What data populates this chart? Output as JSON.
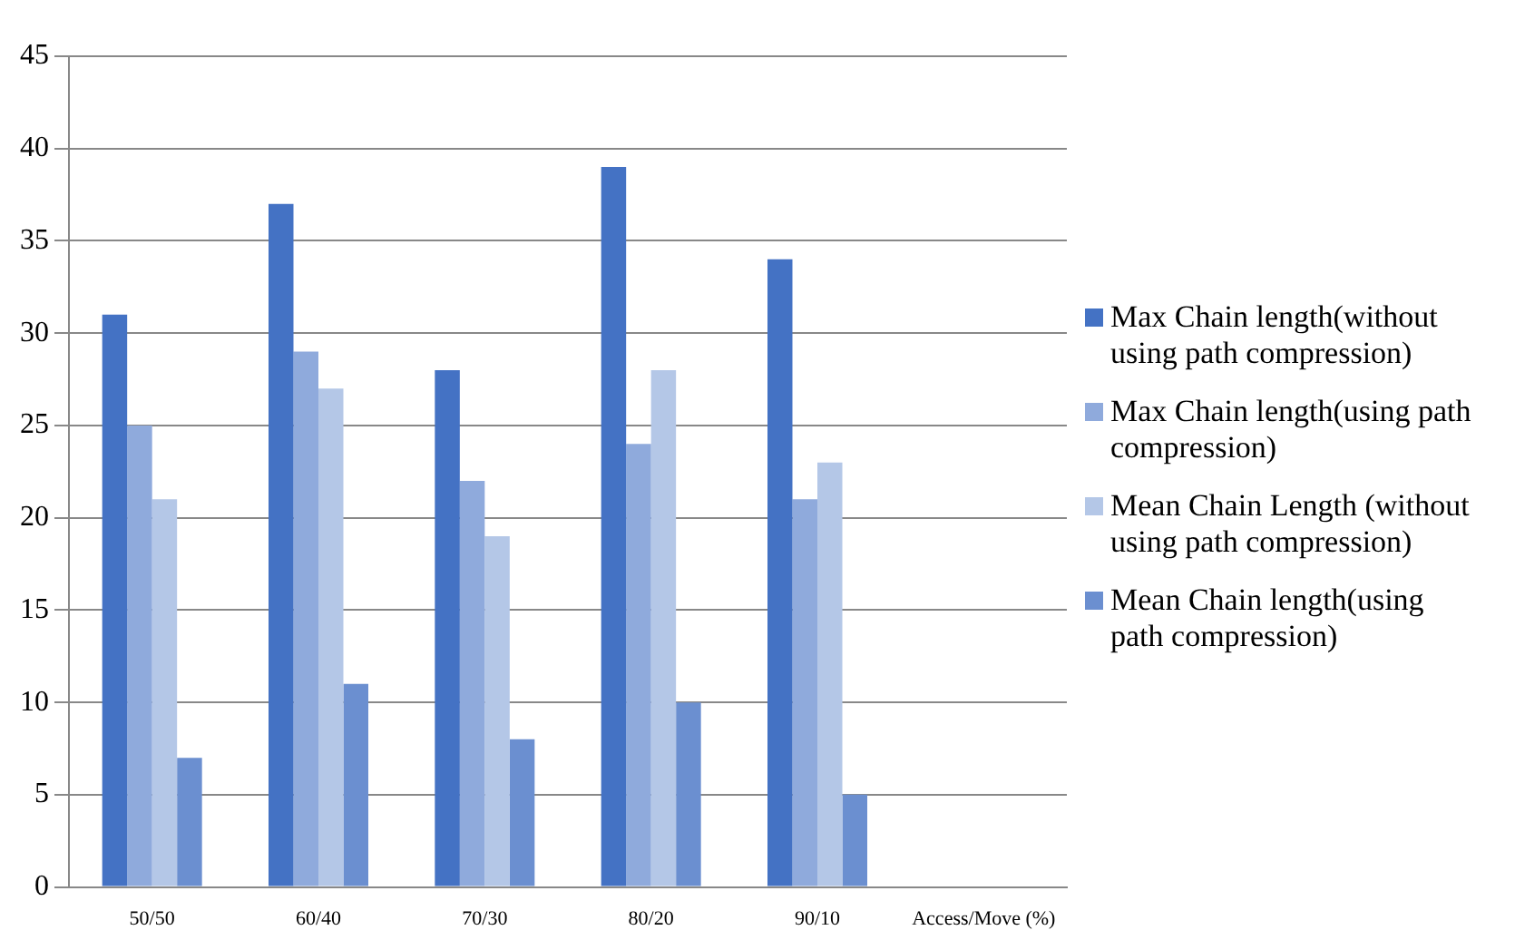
{
  "chart_data": {
    "type": "bar",
    "categories": [
      "50/50",
      "60/40",
      "70/30",
      "80/20",
      "90/10",
      "Access/Move (%)"
    ],
    "series": [
      {
        "name": "Max Chain length(without using path compression)",
        "color": "#4472c4",
        "values": [
          31,
          37,
          28,
          39,
          34,
          null
        ]
      },
      {
        "name": "Max Chain length(using path compression)",
        "color": "#8faadc",
        "values": [
          25,
          29,
          22,
          24,
          21,
          null
        ]
      },
      {
        "name": "Mean Chain Length (without using path compression)",
        "color": "#b4c7e7",
        "values": [
          21,
          27,
          19,
          28,
          23,
          null
        ]
      },
      {
        "name": "Mean Chain length(using path compression)",
        "color": "#6b8fd0",
        "values": [
          7,
          11,
          8,
          10,
          5,
          null
        ]
      }
    ],
    "ylim": [
      0,
      45
    ],
    "yticks": [
      0,
      5,
      10,
      15,
      20,
      25,
      30,
      35,
      40,
      45
    ],
    "grid": "y",
    "legend": "right"
  }
}
